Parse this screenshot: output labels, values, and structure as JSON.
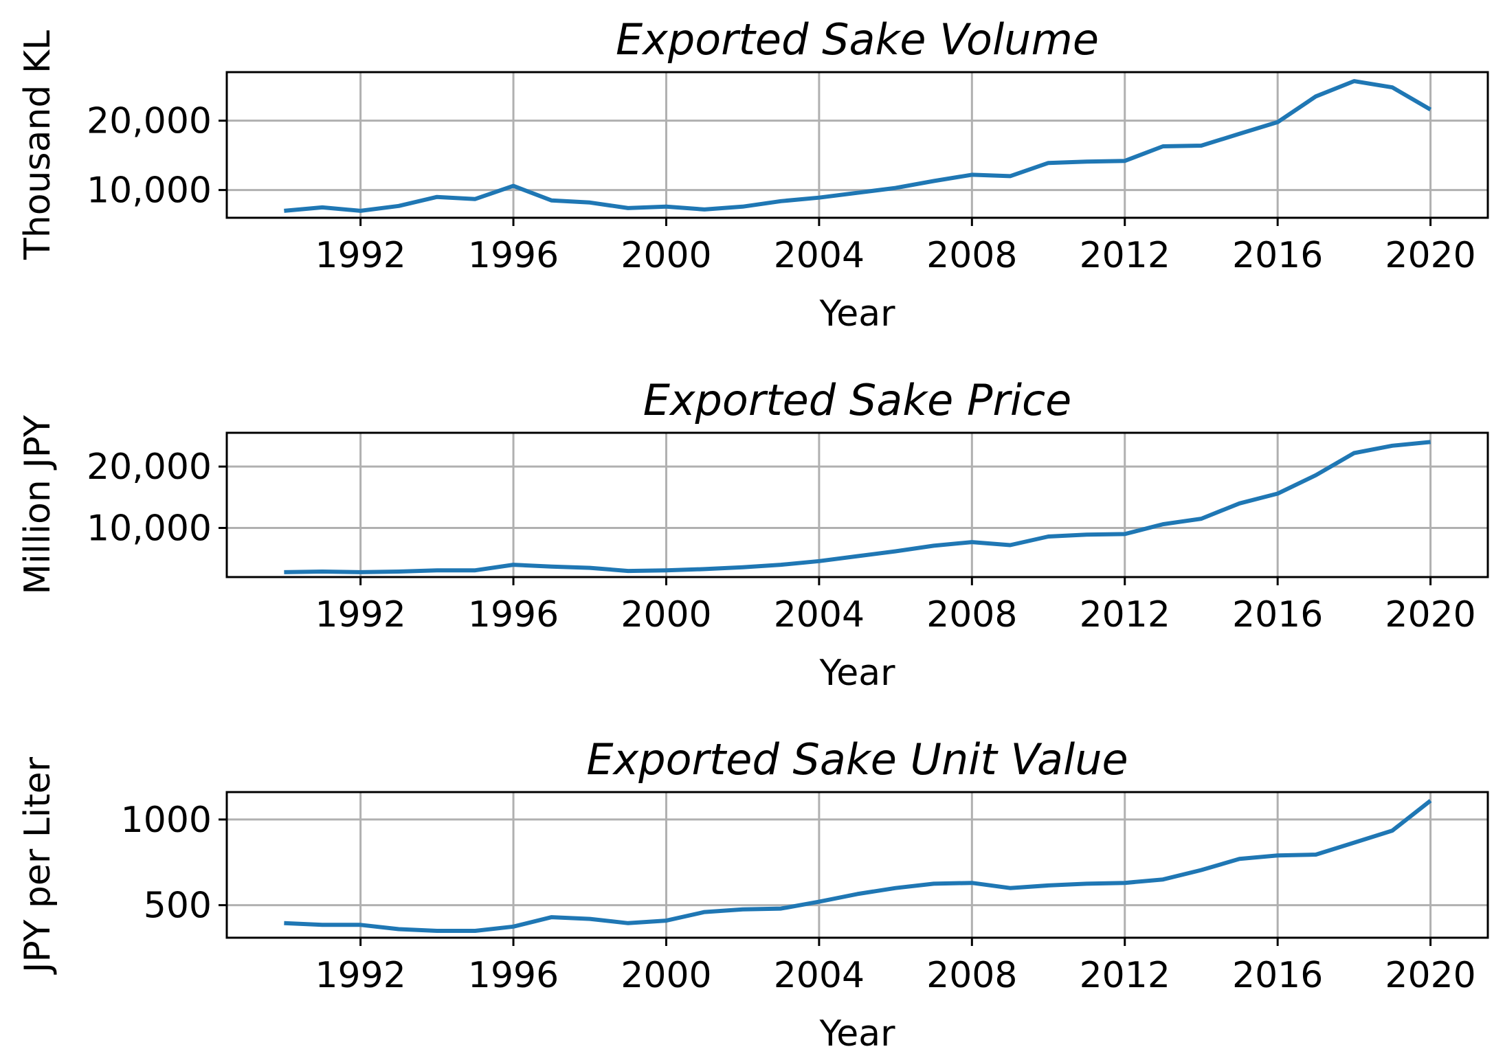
{
  "colors": {
    "line": "#1f77b4",
    "grid": "#b0b0b0",
    "frame": "#000000"
  },
  "chart_data": [
    {
      "type": "line",
      "title": "Exported Sake Volume",
      "xlabel": "Year",
      "ylabel": "Thousand KL",
      "xlim": [
        1988.5,
        2021.5
      ],
      "ylim": [
        6000,
        27000
      ],
      "xticks": [
        1992,
        1996,
        2000,
        2004,
        2008,
        2012,
        2016,
        2020
      ],
      "xtick_labels": [
        "1992",
        "1996",
        "2000",
        "2004",
        "2008",
        "2012",
        "2016",
        "2020"
      ],
      "yticks": [
        10000,
        20000
      ],
      "ytick_labels": [
        "10,000",
        "20,000"
      ],
      "grid": true,
      "x": [
        1990,
        1991,
        1992,
        1993,
        1994,
        1995,
        1996,
        1997,
        1998,
        1999,
        2000,
        2001,
        2002,
        2003,
        2004,
        2005,
        2006,
        2007,
        2008,
        2009,
        2010,
        2011,
        2012,
        2013,
        2014,
        2015,
        2016,
        2017,
        2018,
        2019,
        2020
      ],
      "series": [
        {
          "name": "Volume",
          "values": [
            7000,
            7500,
            7000,
            7700,
            9000,
            8700,
            10600,
            8500,
            8200,
            7400,
            7600,
            7200,
            7600,
            8400,
            8900,
            9600,
            10300,
            11300,
            12200,
            12000,
            13900,
            14100,
            14200,
            16300,
            16400,
            18100,
            19800,
            23500,
            25700,
            24800,
            21600
          ]
        }
      ]
    },
    {
      "type": "line",
      "title": "Exported Sake Price",
      "xlabel": "Year",
      "ylabel": "Million JPY",
      "xlim": [
        1988.5,
        2021.5
      ],
      "ylim": [
        2000,
        25500
      ],
      "xticks": [
        1992,
        1996,
        2000,
        2004,
        2008,
        2012,
        2016,
        2020
      ],
      "xtick_labels": [
        "1992",
        "1996",
        "2000",
        "2004",
        "2008",
        "2012",
        "2016",
        "2020"
      ],
      "yticks": [
        10000,
        20000
      ],
      "ytick_labels": [
        "10,000",
        "20,000"
      ],
      "grid": true,
      "x": [
        1990,
        1991,
        1992,
        1993,
        1994,
        1995,
        1996,
        1997,
        1998,
        1999,
        2000,
        2001,
        2002,
        2003,
        2004,
        2005,
        2006,
        2007,
        2008,
        2009,
        2010,
        2011,
        2012,
        2013,
        2014,
        2015,
        2016,
        2017,
        2018,
        2019,
        2020
      ],
      "series": [
        {
          "name": "Price",
          "values": [
            2800,
            2900,
            2800,
            2900,
            3100,
            3100,
            4000,
            3700,
            3500,
            3000,
            3100,
            3300,
            3600,
            4000,
            4600,
            5400,
            6200,
            7100,
            7700,
            7200,
            8600,
            8900,
            9000,
            10600,
            11500,
            14000,
            15600,
            18600,
            22200,
            23400,
            24000
          ]
        }
      ]
    },
    {
      "type": "line",
      "title": "Exported Sake Unit Value",
      "xlabel": "Year",
      "ylabel": "JPY per Liter",
      "xlim": [
        1988.5,
        2021.5
      ],
      "ylim": [
        310,
        1160
      ],
      "xticks": [
        1992,
        1996,
        2000,
        2004,
        2008,
        2012,
        2016,
        2020
      ],
      "xtick_labels": [
        "1992",
        "1996",
        "2000",
        "2004",
        "2008",
        "2012",
        "2016",
        "2020"
      ],
      "yticks": [
        500,
        1000
      ],
      "ytick_labels": [
        "500",
        "1000"
      ],
      "grid": true,
      "x": [
        1990,
        1991,
        1992,
        1993,
        1994,
        1995,
        1996,
        1997,
        1998,
        1999,
        2000,
        2001,
        2002,
        2003,
        2004,
        2005,
        2006,
        2007,
        2008,
        2009,
        2010,
        2011,
        2012,
        2013,
        2014,
        2015,
        2016,
        2017,
        2018,
        2019,
        2020
      ],
      "series": [
        {
          "name": "Unit Value",
          "values": [
            395,
            385,
            385,
            360,
            350,
            350,
            375,
            430,
            420,
            395,
            410,
            460,
            475,
            480,
            520,
            565,
            600,
            625,
            630,
            600,
            615,
            625,
            630,
            650,
            705,
            770,
            790,
            795,
            865,
            935,
            1110
          ]
        }
      ]
    }
  ]
}
